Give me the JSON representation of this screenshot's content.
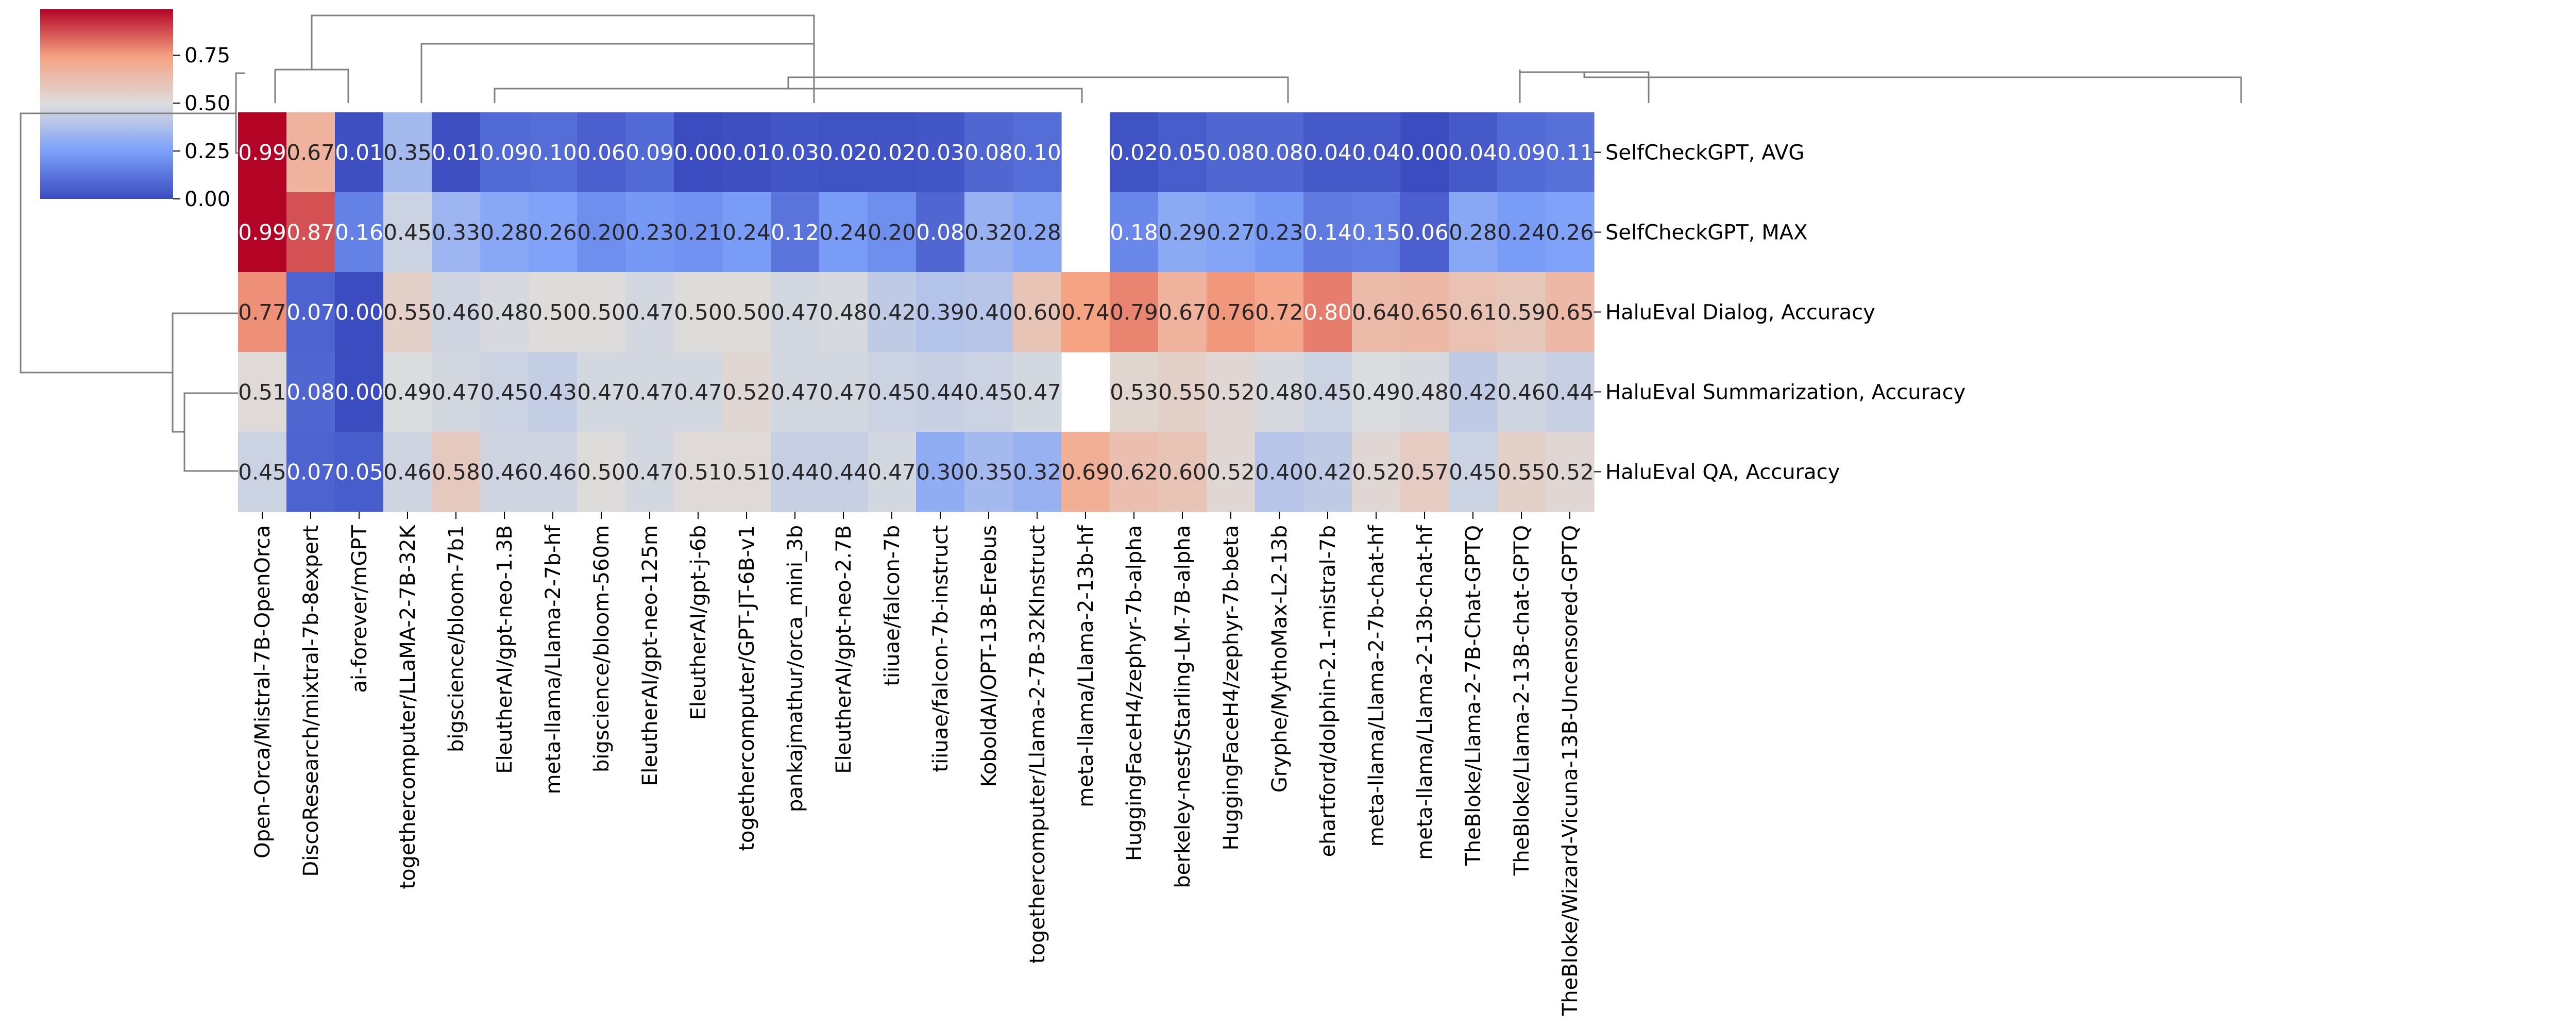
{
  "chart_data": {
    "type": "heatmap",
    "title": "",
    "xlabel": "",
    "ylabel": "",
    "rows": [
      "SelfCheckGPT, AVG",
      "SelfCheckGPT, MAX",
      "HaluEval Dialog, Accuracy",
      "HaluEval Summarization, Accuracy",
      "HaluEval QA, Accuracy"
    ],
    "columns": [
      "Open-Orca/Mistral-7B-OpenOrca",
      "DiscoResearch/mixtral-7b-8expert",
      "ai-forever/mGPT",
      "togethercomputer/LLaMA-2-7B-32K",
      "bigscience/bloom-7b1",
      "EleutherAI/gpt-neo-1.3B",
      "meta-llama/Llama-2-7b-hf",
      "bigscience/bloom-560m",
      "EleutherAI/gpt-neo-125m",
      "EleutherAI/gpt-j-6b",
      "togethercomputer/GPT-JT-6B-v1",
      "pankajmathur/orca_mini_3b",
      "EleutherAI/gpt-neo-2.7B",
      "tiiuae/falcon-7b",
      "tiiuae/falcon-7b-instruct",
      "KoboldAI/OPT-13B-Erebus",
      "togethercomputer/Llama-2-7B-32KInstruct",
      "meta-llama/Llama-2-13b-hf",
      "HuggingFaceH4/zephyr-7b-alpha",
      "berkeley-nest/Starling-LM-7B-alpha",
      "HuggingFaceH4/zephyr-7b-beta",
      "Gryphe/MythoMax-L2-13b",
      "ehartford/dolphin-2.1-mistral-7b",
      "meta-llama/Llama-2-7b-chat-hf",
      "meta-llama/Llama-2-13b-chat-hf",
      "TheBloke/Llama-2-7B-Chat-GPTQ",
      "TheBloke/Llama-2-13B-chat-GPTQ",
      "TheBloke/Wizard-Vicuna-13B-Uncensored-GPTQ"
    ],
    "values": [
      [
        0.99,
        0.67,
        0.01,
        0.35,
        0.01,
        0.09,
        0.1,
        0.06,
        0.09,
        0.0,
        0.01,
        0.03,
        0.02,
        0.02,
        0.03,
        0.08,
        0.1,
        null,
        0.02,
        0.05,
        0.08,
        0.08,
        0.04,
        0.04,
        0.0,
        0.04,
        0.09,
        0.11
      ],
      [
        0.99,
        0.87,
        0.16,
        0.45,
        0.33,
        0.28,
        0.26,
        0.2,
        0.23,
        0.21,
        0.24,
        0.12,
        0.24,
        0.2,
        0.08,
        0.32,
        0.28,
        null,
        0.18,
        0.29,
        0.27,
        0.23,
        0.14,
        0.15,
        0.06,
        0.28,
        0.24,
        0.26
      ],
      [
        0.77,
        0.07,
        0.0,
        0.55,
        0.46,
        0.48,
        0.5,
        0.5,
        0.47,
        0.5,
        0.5,
        0.47,
        0.48,
        0.42,
        0.39,
        0.4,
        0.6,
        0.74,
        0.79,
        0.67,
        0.76,
        0.72,
        0.8,
        0.64,
        0.65,
        0.61,
        0.59,
        0.65
      ],
      [
        0.51,
        0.08,
        0.0,
        0.49,
        0.47,
        0.45,
        0.43,
        0.47,
        0.47,
        0.47,
        0.52,
        0.47,
        0.47,
        0.45,
        0.44,
        0.45,
        0.47,
        null,
        0.53,
        0.55,
        0.52,
        0.48,
        0.45,
        0.49,
        0.48,
        0.42,
        0.46,
        0.44
      ],
      [
        0.45,
        0.07,
        0.05,
        0.46,
        0.58,
        0.46,
        0.46,
        0.5,
        0.47,
        0.51,
        0.51,
        0.44,
        0.44,
        0.47,
        0.3,
        0.35,
        0.32,
        0.69,
        0.62,
        0.6,
        0.52,
        0.4,
        0.42,
        0.52,
        0.57,
        0.45,
        0.55,
        0.52
      ]
    ],
    "colormap": "coolwarm",
    "vmin": 0.0,
    "vmax": 0.99,
    "colorbar_ticks": [
      "0.00",
      "0.25",
      "0.50",
      "0.75"
    ],
    "colorbar_tick_values": [
      0.0,
      0.25,
      0.5,
      0.75
    ],
    "colorbar_position": "top-left",
    "row_dendrogram": "left",
    "column_dendrogram": "top"
  }
}
